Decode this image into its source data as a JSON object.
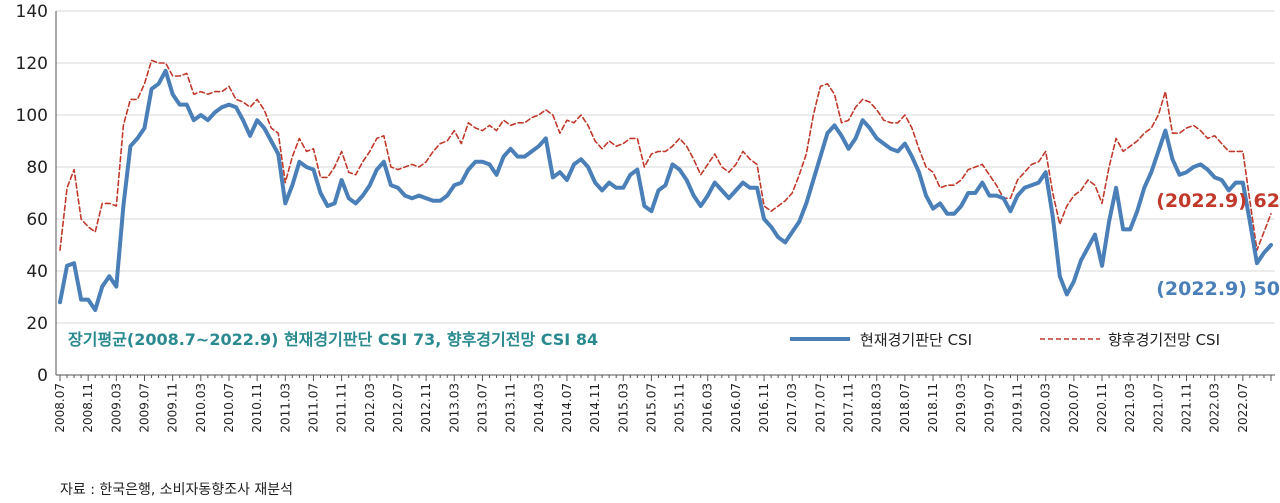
{
  "chart_data": {
    "type": "line",
    "ylim": [
      0,
      140
    ],
    "yticks": [
      0,
      20,
      40,
      60,
      80,
      100,
      120,
      140
    ],
    "x_tick_labels": [
      "2008.07",
      "2008.11",
      "2009.03",
      "2009.07",
      "2009.11",
      "2010.03",
      "2010.07",
      "2010.11",
      "2011.03",
      "2011.07",
      "2011.11",
      "2012.03",
      "2012.07",
      "2012.11",
      "2013.03",
      "2013.07",
      "2013.11",
      "2014.03",
      "2014.07",
      "2014.11",
      "2015.03",
      "2015.07",
      "2015.11",
      "2016.03",
      "2016.07",
      "2016.11",
      "2017.03",
      "2017.07",
      "2017.11",
      "2018.03",
      "2018.07",
      "2018.11",
      "2019.03",
      "2019.07",
      "2019.11",
      "2020.03",
      "2020.07",
      "2020.11",
      "2021.03",
      "2021.07",
      "2021.11",
      "2022.03",
      "2022.07"
    ],
    "x_start": "2008.07",
    "x_end": "2022.09",
    "legend_placement": "bottom",
    "annotation": "장기평균(2008.7~2022.9) 현재경기판단 CSI 73, 향후경기전망 CSI 84",
    "series": [
      {
        "name": "현재경기판단 CSI",
        "color": "#4a7fb8",
        "style": "solid",
        "end_label": "(2022.9) 50",
        "values": [
          28,
          42,
          43,
          29,
          29,
          25,
          34,
          38,
          34,
          65,
          88,
          91,
          95,
          110,
          112,
          117,
          108,
          104,
          104,
          98,
          100,
          98,
          101,
          103,
          104,
          103,
          98,
          92,
          98,
          95,
          90,
          85,
          66,
          73,
          82,
          80,
          79,
          70,
          65,
          66,
          75,
          68,
          66,
          69,
          73,
          79,
          82,
          73,
          72,
          69,
          68,
          69,
          68,
          67,
          67,
          69,
          73,
          74,
          79,
          82,
          82,
          81,
          77,
          84,
          87,
          84,
          84,
          86,
          88,
          91,
          76,
          78,
          75,
          81,
          83,
          80,
          74,
          71,
          74,
          72,
          72,
          77,
          79,
          65,
          63,
          71,
          73,
          81,
          79,
          75,
          69,
          65,
          69,
          74,
          71,
          68,
          71,
          74,
          72,
          72,
          60,
          57,
          53,
          51,
          55,
          59,
          66,
          75,
          84,
          93,
          96,
          92,
          87,
          91,
          98,
          95,
          91,
          89,
          87,
          86,
          89,
          84,
          78,
          69,
          64,
          66,
          62,
          62,
          65,
          70,
          70,
          74,
          69,
          69,
          68,
          63,
          69,
          72,
          73,
          74,
          78,
          61,
          38,
          31,
          36,
          44,
          49,
          54,
          42,
          59,
          72,
          56,
          56,
          63,
          72,
          78,
          86,
          94,
          83,
          77,
          78,
          80,
          81,
          79,
          76,
          75,
          71,
          74,
          74,
          59,
          43,
          47,
          50
        ]
      },
      {
        "name": "향후경기전망 CSI",
        "color": "#c0392b",
        "style": "dashed",
        "end_label": "(2022.9) 62",
        "values": [
          48,
          72,
          79,
          60,
          57,
          55,
          66,
          66,
          65,
          96,
          106,
          106,
          112,
          121,
          120,
          120,
          115,
          115,
          116,
          108,
          109,
          108,
          109,
          109,
          111,
          106,
          105,
          103,
          106,
          102,
          95,
          93,
          74,
          84,
          91,
          86,
          87,
          76,
          76,
          80,
          86,
          78,
          77,
          82,
          86,
          91,
          92,
          80,
          79,
          80,
          81,
          80,
          82,
          86,
          89,
          90,
          94,
          89,
          97,
          95,
          94,
          96,
          94,
          98,
          96,
          97,
          97,
          99,
          100,
          102,
          100,
          93,
          98,
          97,
          100,
          96,
          90,
          87,
          90,
          88,
          89,
          91,
          91,
          80,
          85,
          86,
          86,
          88,
          91,
          88,
          83,
          77,
          81,
          85,
          80,
          78,
          81,
          86,
          83,
          81,
          65,
          63,
          65,
          67,
          70,
          77,
          85,
          100,
          111,
          112,
          108,
          97,
          98,
          103,
          106,
          105,
          102,
          98,
          97,
          97,
          100,
          95,
          87,
          80,
          78,
          72,
          73,
          73,
          75,
          79,
          80,
          81,
          77,
          73,
          68,
          68,
          75,
          78,
          81,
          82,
          86,
          70,
          58,
          65,
          69,
          71,
          75,
          73,
          66,
          80,
          91,
          86,
          88,
          90,
          93,
          95,
          100,
          109,
          93,
          93,
          95,
          96,
          94,
          91,
          92,
          89,
          86,
          86,
          86,
          67,
          48,
          55,
          62
        ]
      }
    ]
  },
  "source": "자료 : 한국은행, 소비자동향조사 재분석"
}
